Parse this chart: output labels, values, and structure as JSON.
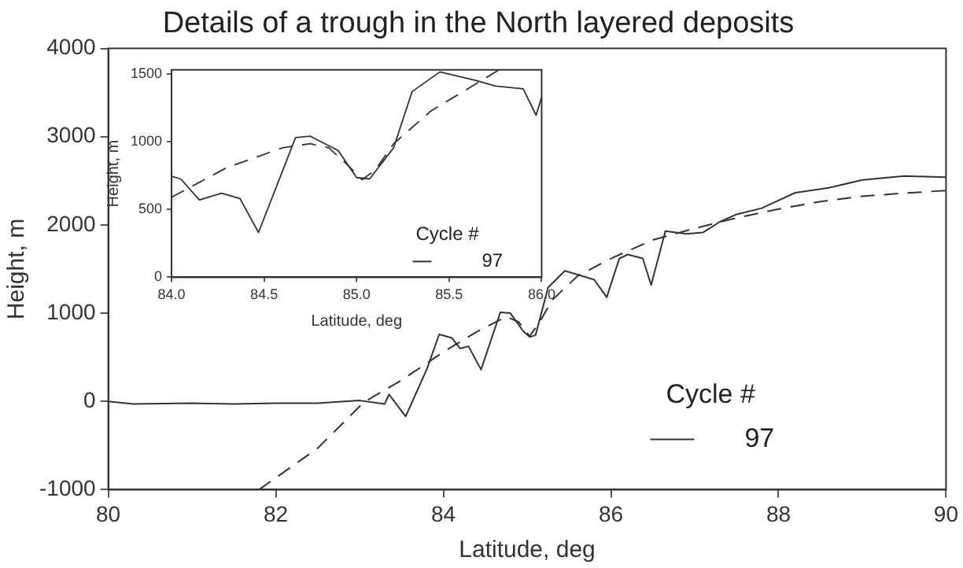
{
  "chart_data": [
    {
      "type": "line",
      "title": "Details of a trough in the North layered deposits",
      "xlabel": "Latitude, deg",
      "ylabel": "Height, m",
      "legend_title": "Cycle #",
      "legend": "bottom right",
      "xlim": [
        80,
        90
      ],
      "ylim": [
        -1000,
        4000
      ],
      "xticks": [
        80,
        82,
        84,
        86,
        88,
        90
      ],
      "yticks": [
        -1000,
        0,
        1000,
        2000,
        3000,
        4000
      ],
      "series": [
        {
          "name": "97",
          "color": "#333333",
          "line_style": "solid",
          "x": [
            80,
            80.3,
            81,
            81.5,
            82,
            82.5,
            83,
            83.3,
            83.35,
            83.55,
            83.8,
            83.95,
            84.1,
            84.2,
            84.3,
            84.45,
            84.68,
            84.8,
            84.95,
            85.03,
            85.1,
            85.25,
            85.45,
            85.8,
            85.95,
            86.1,
            86.2,
            86.38,
            86.48,
            86.65,
            86.9,
            87.1,
            87.3,
            87.5,
            87.8,
            88.2,
            88.6,
            89,
            89.5,
            90
          ],
          "values": [
            0,
            -30,
            -20,
            -30,
            -20,
            -20,
            10,
            -30,
            80,
            -170,
            360,
            760,
            720,
            600,
            625,
            360,
            1010,
            1000,
            800,
            730,
            750,
            1290,
            1480,
            1380,
            1180,
            1620,
            1665,
            1620,
            1320,
            1930,
            1900,
            1915,
            2035,
            2120,
            2190,
            2365,
            2420,
            2510,
            2555,
            2540
          ]
        },
        {
          "color": "#333333",
          "line_style": "dashed",
          "x": [
            81.8,
            82.5,
            83.05,
            83.5,
            84,
            84.4,
            84.75,
            84.9,
            85.03,
            85.15,
            85.3,
            85.6,
            86,
            86.5,
            87,
            87.5,
            88,
            88.5,
            89,
            89.5,
            90
          ],
          "values": [
            -1000,
            -530,
            -10,
            240,
            560,
            790,
            960,
            900,
            740,
            900,
            1150,
            1420,
            1620,
            1830,
            1960,
            2080,
            2180,
            2265,
            2325,
            2360,
            2390
          ]
        }
      ]
    },
    {
      "type": "line",
      "xlabel": "Latitude, deg",
      "ylabel": "Height, m",
      "legend_title": "Cycle #",
      "legend": "bottom right",
      "xlim": [
        84,
        86
      ],
      "ylim": [
        0,
        1530
      ],
      "xticks": [
        {
          "value": 84,
          "label": "84.0"
        },
        {
          "value": 84.5,
          "label": "84.5"
        },
        {
          "value": 85,
          "label": "85.0"
        },
        {
          "value": 85.5,
          "label": "85.5"
        },
        {
          "value": 86,
          "label": "86.0"
        }
      ],
      "yticks": [
        0,
        500,
        1000,
        1500
      ],
      "series": [
        {
          "name": "97",
          "color": "#333333",
          "line_style": "solid",
          "x": [
            84,
            84.05,
            84.15,
            84.27,
            84.37,
            84.47,
            84.67,
            84.75,
            84.9,
            85,
            85.07,
            85.2,
            85.3,
            85.45,
            85.65,
            85.75,
            85.9,
            85.97,
            86
          ],
          "values": [
            745,
            725,
            570,
            620,
            580,
            330,
            1030,
            1040,
            935,
            735,
            725,
            955,
            1370,
            1515,
            1450,
            1410,
            1390,
            1195,
            1330
          ]
        },
        {
          "color": "#333333",
          "line_style": "dashed",
          "x": [
            84,
            84.3,
            84.6,
            84.75,
            84.85,
            84.95,
            85.03,
            85.1,
            85.2,
            85.4,
            85.6,
            85.77
          ],
          "values": [
            590,
            810,
            955,
            985,
            955,
            830,
            720,
            790,
            985,
            1225,
            1390,
            1530
          ]
        }
      ]
    }
  ]
}
